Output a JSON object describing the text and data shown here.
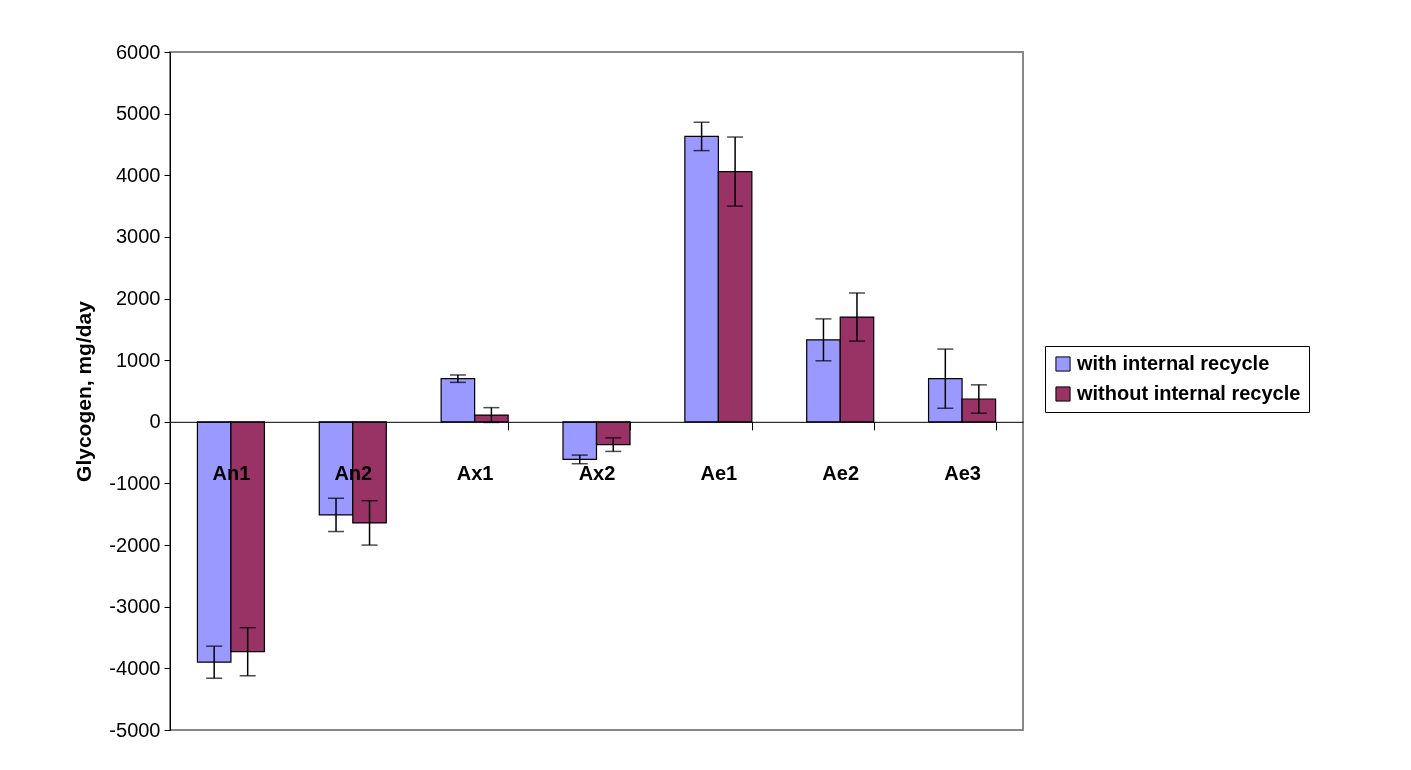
{
  "chart_data": {
    "type": "bar",
    "ylabel": "Glycogen, mg/day",
    "categories": [
      "An1",
      "An2",
      "Ax1",
      "Ax2",
      "Ae1",
      "Ae2",
      "Ae3"
    ],
    "series": [
      {
        "name": "with internal recycle",
        "color": "#9999ff",
        "values": [
          -3900,
          -1510,
          700,
          -610,
          4630,
          1330,
          700
        ],
        "errors": [
          260,
          270,
          60,
          70,
          230,
          340,
          480
        ]
      },
      {
        "name": "without internal recycle",
        "color": "#993366",
        "values": [
          -3730,
          -1640,
          110,
          -370,
          4060,
          1700,
          370
        ],
        "errors": [
          390,
          360,
          120,
          110,
          560,
          390,
          230
        ]
      }
    ],
    "ylim": [
      -5000,
      6000
    ],
    "yticks": [
      -5000,
      -4000,
      -3000,
      -2000,
      -1000,
      0,
      1000,
      2000,
      3000,
      4000,
      5000,
      6000
    ],
    "grid": false,
    "legend": "right"
  }
}
